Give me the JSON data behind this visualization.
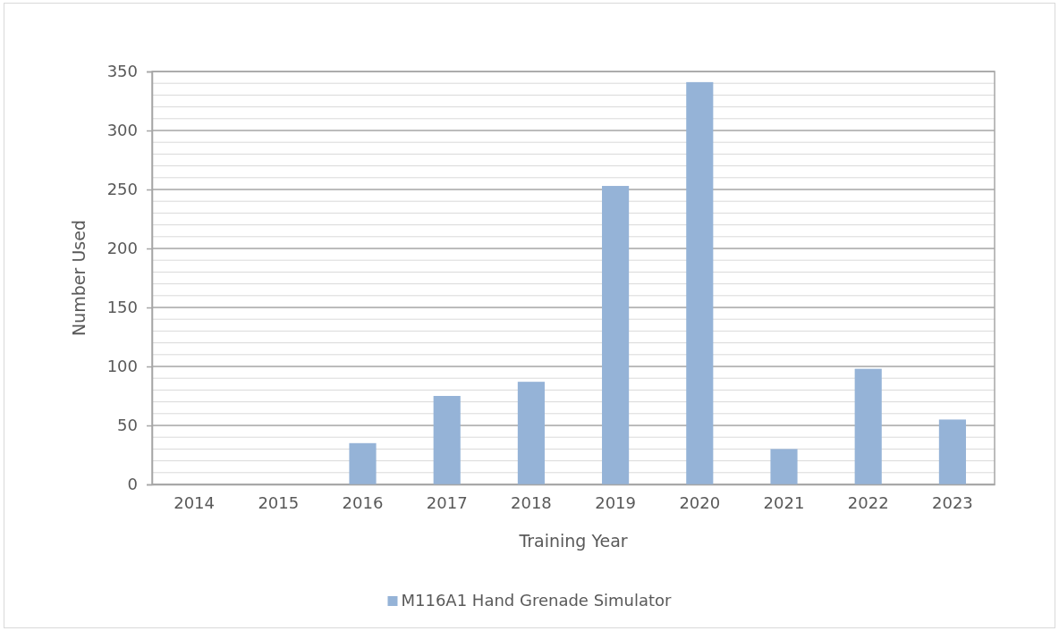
{
  "chart_data": {
    "type": "bar",
    "xlabel": "Training Year",
    "ylabel": "Number Used",
    "categories": [
      "2014",
      "2015",
      "2016",
      "2017",
      "2018",
      "2019",
      "2020",
      "2021",
      "2022",
      "2023"
    ],
    "series": [
      {
        "name": "M116A1 Hand Grenade Simulator",
        "color": "#95b3d7",
        "values": [
          null,
          null,
          35,
          75,
          87,
          253,
          341,
          30,
          98,
          55
        ]
      }
    ],
    "ylim": [
      0,
      350
    ],
    "yticks": [
      0,
      {
        "value": 10,
        "label": null
      },
      {
        "value": 20,
        "label": null
      },
      {
        "value": 30,
        "label": null
      },
      {
        "value": 40,
        "label": null
      },
      50,
      {
        "value": 60,
        "label": null
      },
      {
        "value": 70,
        "label": null
      },
      {
        "value": 80,
        "label": null
      },
      {
        "value": 90,
        "label": null
      },
      100,
      {
        "value": 110,
        "label": null
      },
      {
        "value": 120,
        "label": null
      },
      {
        "value": 130,
        "label": null
      },
      {
        "value": 140,
        "label": null
      },
      150,
      {
        "value": 160,
        "label": null
      },
      {
        "value": 170,
        "label": null
      },
      {
        "value": 180,
        "label": null
      },
      {
        "value": 190,
        "label": null
      },
      200,
      {
        "value": 210,
        "label": null
      },
      {
        "value": 220,
        "label": null
      },
      {
        "value": 230,
        "label": null
      },
      {
        "value": 240,
        "label": null
      },
      250,
      {
        "value": 260,
        "label": null
      },
      {
        "value": 270,
        "label": null
      },
      {
        "value": 280,
        "label": null
      },
      {
        "value": 290,
        "label": null
      },
      300,
      {
        "value": 310,
        "label": null
      },
      {
        "value": 320,
        "label": null
      },
      {
        "value": 330,
        "label": null
      },
      {
        "value": 340,
        "label": null
      },
      350
    ],
    "grid": "y",
    "legend": "bottom"
  }
}
